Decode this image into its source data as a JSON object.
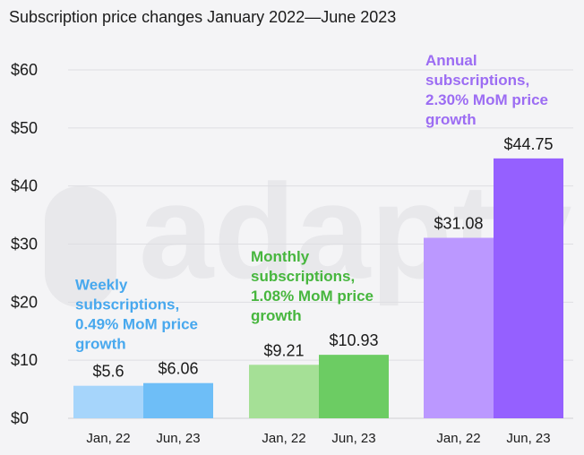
{
  "chart_data": {
    "type": "bar",
    "title": "Subscription price changes January 2022—June 2023",
    "xlabel": "",
    "ylabel": "",
    "ylim": [
      0,
      60
    ],
    "yticks": [
      0,
      10,
      20,
      30,
      40,
      50,
      60
    ],
    "ytick_labels": [
      "$0",
      "$10",
      "$20",
      "$30",
      "$40",
      "$50",
      "$60"
    ],
    "grid": true,
    "groups": [
      {
        "name": "Weekly",
        "annotation": [
          "Weekly",
          "subscriptions,",
          "0.49% MoM price",
          "growth"
        ],
        "color_light": "#a6d5fb",
        "color_dark": "#6ebef7",
        "annotation_color": "#47a8ee",
        "bars": [
          {
            "category": "Jan, 22",
            "value": 5.6,
            "label": "$5.6"
          },
          {
            "category": "Jun, 23",
            "value": 6.06,
            "label": "$6.06"
          }
        ]
      },
      {
        "name": "Monthly",
        "annotation": [
          "Monthly",
          "subscriptions,",
          "1.08% MoM price",
          "growth"
        ],
        "color_light": "#a5e096",
        "color_dark": "#6ccc63",
        "annotation_color": "#47b63e",
        "bars": [
          {
            "category": "Jan, 22",
            "value": 9.21,
            "label": "$9.21"
          },
          {
            "category": "Jun, 23",
            "value": 10.93,
            "label": "$10.93"
          }
        ]
      },
      {
        "name": "Annual",
        "annotation": [
          "Annual",
          "subscriptions,",
          "2.30% MoM price",
          "growth"
        ],
        "color_light": "#bb98ff",
        "color_dark": "#9560ff",
        "annotation_color": "#9c6cf3",
        "bars": [
          {
            "category": "Jan, 22",
            "value": 31.08,
            "label": "$31.08"
          },
          {
            "category": "Jun, 23",
            "value": 44.75,
            "label": "$44.75"
          }
        ]
      }
    ],
    "watermark": "adapty"
  }
}
